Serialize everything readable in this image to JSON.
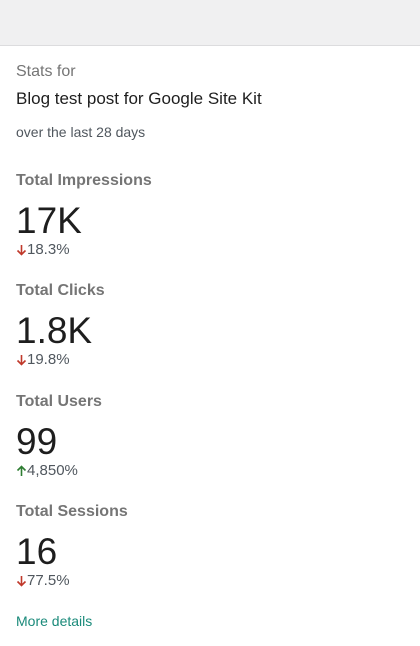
{
  "header": {
    "stats_for": "Stats for",
    "post_title": "Blog test post for Google Site Kit",
    "period": "over the last 28 days"
  },
  "metrics": [
    {
      "label": "Total Impressions",
      "value": "17K",
      "change": "18.3%",
      "direction": "down"
    },
    {
      "label": "Total Clicks",
      "value": "1.8K",
      "change": "19.8%",
      "direction": "down"
    },
    {
      "label": "Total Users",
      "value": "99",
      "change": "4,850%",
      "direction": "up"
    },
    {
      "label": "Total Sessions",
      "value": "16",
      "change": "77.5%",
      "direction": "down"
    }
  ],
  "footer": {
    "more_details": "More details"
  },
  "colors": {
    "down": "#c0392b",
    "up": "#2e7d32",
    "link": "#1a8a7a"
  }
}
